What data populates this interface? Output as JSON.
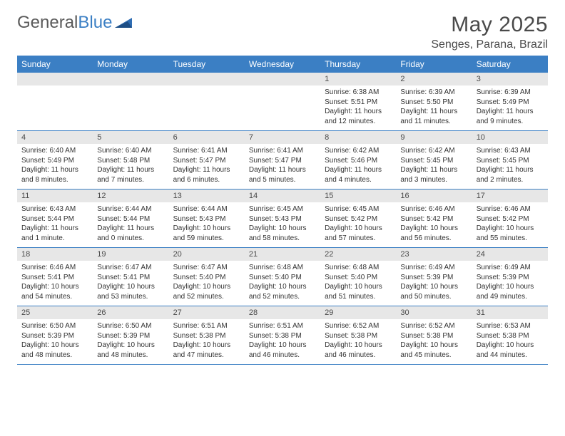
{
  "logo": {
    "word1": "General",
    "word2": "Blue"
  },
  "title": "May 2025",
  "location": "Senges, Parana, Brazil",
  "colors": {
    "header_bg": "#3b7fc4",
    "header_text": "#ffffff",
    "daynum_bg": "#e7e7e7",
    "border": "#3b7fc4",
    "text": "#333333",
    "title_text": "#4a4a4a"
  },
  "day_names": [
    "Sunday",
    "Monday",
    "Tuesday",
    "Wednesday",
    "Thursday",
    "Friday",
    "Saturday"
  ],
  "weeks": [
    [
      null,
      null,
      null,
      null,
      {
        "n": "1",
        "sr": "6:38 AM",
        "ss": "5:51 PM",
        "dl": "11 hours and 12 minutes."
      },
      {
        "n": "2",
        "sr": "6:39 AM",
        "ss": "5:50 PM",
        "dl": "11 hours and 11 minutes."
      },
      {
        "n": "3",
        "sr": "6:39 AM",
        "ss": "5:49 PM",
        "dl": "11 hours and 9 minutes."
      }
    ],
    [
      {
        "n": "4",
        "sr": "6:40 AM",
        "ss": "5:49 PM",
        "dl": "11 hours and 8 minutes."
      },
      {
        "n": "5",
        "sr": "6:40 AM",
        "ss": "5:48 PM",
        "dl": "11 hours and 7 minutes."
      },
      {
        "n": "6",
        "sr": "6:41 AM",
        "ss": "5:47 PM",
        "dl": "11 hours and 6 minutes."
      },
      {
        "n": "7",
        "sr": "6:41 AM",
        "ss": "5:47 PM",
        "dl": "11 hours and 5 minutes."
      },
      {
        "n": "8",
        "sr": "6:42 AM",
        "ss": "5:46 PM",
        "dl": "11 hours and 4 minutes."
      },
      {
        "n": "9",
        "sr": "6:42 AM",
        "ss": "5:45 PM",
        "dl": "11 hours and 3 minutes."
      },
      {
        "n": "10",
        "sr": "6:43 AM",
        "ss": "5:45 PM",
        "dl": "11 hours and 2 minutes."
      }
    ],
    [
      {
        "n": "11",
        "sr": "6:43 AM",
        "ss": "5:44 PM",
        "dl": "11 hours and 1 minute."
      },
      {
        "n": "12",
        "sr": "6:44 AM",
        "ss": "5:44 PM",
        "dl": "11 hours and 0 minutes."
      },
      {
        "n": "13",
        "sr": "6:44 AM",
        "ss": "5:43 PM",
        "dl": "10 hours and 59 minutes."
      },
      {
        "n": "14",
        "sr": "6:45 AM",
        "ss": "5:43 PM",
        "dl": "10 hours and 58 minutes."
      },
      {
        "n": "15",
        "sr": "6:45 AM",
        "ss": "5:42 PM",
        "dl": "10 hours and 57 minutes."
      },
      {
        "n": "16",
        "sr": "6:46 AM",
        "ss": "5:42 PM",
        "dl": "10 hours and 56 minutes."
      },
      {
        "n": "17",
        "sr": "6:46 AM",
        "ss": "5:42 PM",
        "dl": "10 hours and 55 minutes."
      }
    ],
    [
      {
        "n": "18",
        "sr": "6:46 AM",
        "ss": "5:41 PM",
        "dl": "10 hours and 54 minutes."
      },
      {
        "n": "19",
        "sr": "6:47 AM",
        "ss": "5:41 PM",
        "dl": "10 hours and 53 minutes."
      },
      {
        "n": "20",
        "sr": "6:47 AM",
        "ss": "5:40 PM",
        "dl": "10 hours and 52 minutes."
      },
      {
        "n": "21",
        "sr": "6:48 AM",
        "ss": "5:40 PM",
        "dl": "10 hours and 52 minutes."
      },
      {
        "n": "22",
        "sr": "6:48 AM",
        "ss": "5:40 PM",
        "dl": "10 hours and 51 minutes."
      },
      {
        "n": "23",
        "sr": "6:49 AM",
        "ss": "5:39 PM",
        "dl": "10 hours and 50 minutes."
      },
      {
        "n": "24",
        "sr": "6:49 AM",
        "ss": "5:39 PM",
        "dl": "10 hours and 49 minutes."
      }
    ],
    [
      {
        "n": "25",
        "sr": "6:50 AM",
        "ss": "5:39 PM",
        "dl": "10 hours and 48 minutes."
      },
      {
        "n": "26",
        "sr": "6:50 AM",
        "ss": "5:39 PM",
        "dl": "10 hours and 48 minutes."
      },
      {
        "n": "27",
        "sr": "6:51 AM",
        "ss": "5:38 PM",
        "dl": "10 hours and 47 minutes."
      },
      {
        "n": "28",
        "sr": "6:51 AM",
        "ss": "5:38 PM",
        "dl": "10 hours and 46 minutes."
      },
      {
        "n": "29",
        "sr": "6:52 AM",
        "ss": "5:38 PM",
        "dl": "10 hours and 46 minutes."
      },
      {
        "n": "30",
        "sr": "6:52 AM",
        "ss": "5:38 PM",
        "dl": "10 hours and 45 minutes."
      },
      {
        "n": "31",
        "sr": "6:53 AM",
        "ss": "5:38 PM",
        "dl": "10 hours and 44 minutes."
      }
    ]
  ],
  "labels": {
    "sunrise": "Sunrise:",
    "sunset": "Sunset:",
    "daylight": "Daylight:"
  }
}
